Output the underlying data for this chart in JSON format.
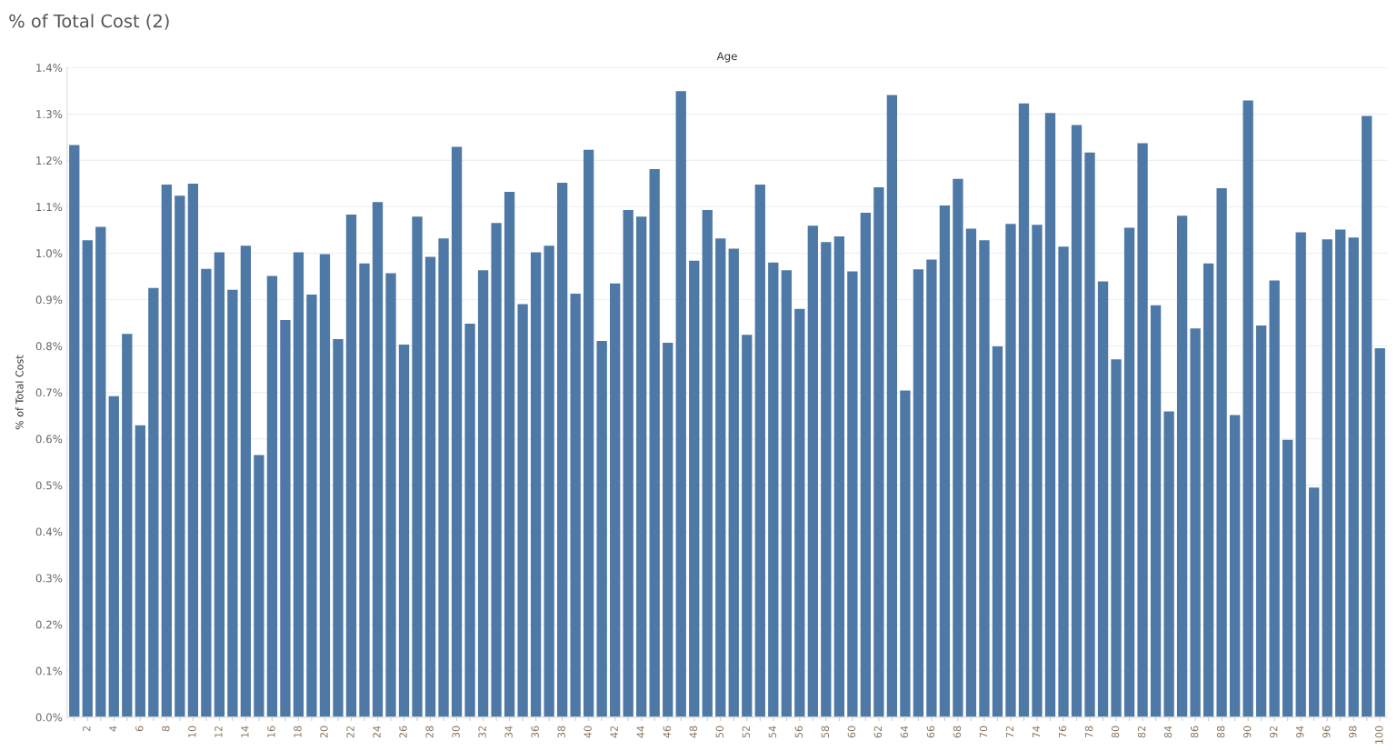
{
  "chart_data": {
    "type": "bar",
    "title": "% of Total Cost (2)",
    "xlabel": "Age",
    "ylabel": "% of Total Cost",
    "categories": [
      null,
      "2",
      null,
      "4",
      null,
      "6",
      null,
      "8",
      null,
      "10",
      null,
      "12",
      null,
      "14",
      null,
      "16",
      null,
      "18",
      null,
      "20",
      null,
      "22",
      null,
      "24",
      null,
      "26",
      null,
      "28",
      null,
      "30",
      null,
      "32",
      null,
      "34",
      null,
      "36",
      null,
      "38",
      null,
      "40",
      null,
      "42",
      null,
      "44",
      null,
      "46",
      null,
      "48",
      null,
      "50",
      null,
      "52",
      null,
      "54",
      null,
      "56",
      null,
      "58",
      null,
      "60",
      null,
      "62",
      null,
      "64",
      null,
      "66",
      null,
      "68",
      null,
      "70",
      null,
      "72",
      null,
      "74",
      null,
      "76",
      null,
      "78",
      null,
      "80",
      null,
      "82",
      null,
      "84",
      null,
      "86",
      null,
      "88",
      null,
      "90",
      null,
      "92",
      null,
      "94",
      null,
      "96",
      null,
      "98",
      null,
      "100"
    ],
    "values": [
      1.233,
      1.028,
      1.057,
      0.692,
      0.826,
      0.629,
      0.925,
      1.148,
      1.124,
      1.15,
      0.966,
      1.002,
      0.921,
      1.016,
      0.565,
      0.951,
      0.856,
      1.002,
      0.911,
      0.998,
      0.815,
      1.083,
      0.978,
      1.11,
      0.957,
      0.803,
      1.079,
      0.992,
      1.032,
      1.229,
      0.848,
      0.963,
      1.065,
      1.132,
      0.89,
      1.002,
      1.016,
      1.152,
      0.913,
      1.223,
      0.811,
      0.935,
      1.093,
      1.079,
      1.181,
      0.807,
      1.349,
      0.984,
      1.093,
      1.032,
      1.01,
      0.824,
      1.148,
      0.98,
      0.963,
      0.88,
      1.059,
      1.024,
      1.036,
      0.961,
      1.087,
      1.142,
      1.341,
      0.704,
      0.965,
      0.986,
      1.103,
      1.16,
      1.053,
      1.028,
      0.799,
      1.063,
      1.323,
      1.061,
      1.302,
      1.014,
      1.276,
      1.217,
      0.939,
      0.771,
      1.055,
      1.237,
      0.888,
      0.659,
      1.081,
      0.838,
      0.978,
      1.14,
      0.651,
      1.329,
      0.844,
      0.941,
      0.598,
      1.045,
      0.495,
      1.03,
      1.051,
      1.034,
      1.296,
      0.795
    ],
    "color": "#4e79a7",
    "ylim": [
      0,
      1.4
    ],
    "yticks": [
      {
        "value": 0,
        "label": "0.0%"
      },
      {
        "value": 0.1,
        "label": "0.1%"
      },
      {
        "value": 0.2,
        "label": "0.2%"
      },
      {
        "value": 0.3,
        "label": "0.3%"
      },
      {
        "value": 0.4,
        "label": "0.4%"
      },
      {
        "value": 0.5,
        "label": "0.5%"
      },
      {
        "value": 0.6,
        "label": "0.6%"
      },
      {
        "value": 0.7,
        "label": "0.7%"
      },
      {
        "value": 0.8,
        "label": "0.8%"
      },
      {
        "value": 0.9,
        "label": "0.9%"
      },
      {
        "value": 1.0,
        "label": "1.0%"
      },
      {
        "value": 1.1,
        "label": "1.1%"
      },
      {
        "value": 1.2,
        "label": "1.2%"
      },
      {
        "value": 1.3,
        "label": "1.3%"
      },
      {
        "value": 1.4,
        "label": "1.4%"
      }
    ],
    "grid": "y"
  }
}
